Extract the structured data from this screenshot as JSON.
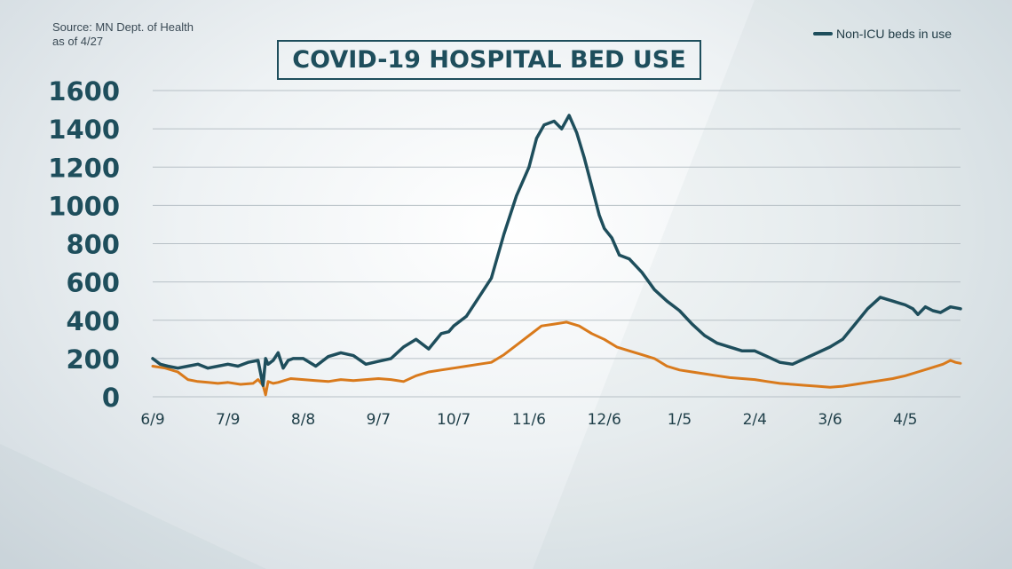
{
  "source_line1": "Source: MN Dept. of Health",
  "source_line2": "as of 4/27",
  "title": "COVID-19 HOSPITAL BED USE",
  "legend": {
    "label": "Non-ICU beds in use"
  },
  "colors": {
    "non_icu": "#1e4e5c",
    "icu": "#d97a1c",
    "grid": "#b7c0c6",
    "text": "#1e4e5c"
  },
  "chart_data": {
    "type": "line",
    "title": "COVID-19 HOSPITAL BED USE",
    "xlabel": "",
    "ylabel": "",
    "ylim": [
      0,
      1600
    ],
    "yticks": [
      0,
      200,
      400,
      600,
      800,
      1000,
      1200,
      1400,
      1600
    ],
    "xtick_labels": [
      "6/9",
      "7/9",
      "8/8",
      "9/7",
      "10/7",
      "11/6",
      "12/6",
      "1/5",
      "2/4",
      "3/6",
      "4/5"
    ],
    "xtick_positions": [
      0,
      30,
      60,
      90,
      120,
      150,
      180,
      210,
      240,
      270,
      300
    ],
    "xlim": [
      0,
      322
    ],
    "grid": true,
    "legend_position": "top-right",
    "series": [
      {
        "name": "Non-ICU beds in use",
        "x": [
          0,
          3,
          6,
          10,
          14,
          18,
          22,
          26,
          30,
          34,
          38,
          42,
          44,
          45,
          46,
          48,
          50,
          52,
          54,
          56,
          60,
          65,
          70,
          75,
          80,
          85,
          90,
          95,
          100,
          105,
          110,
          115,
          118,
          120,
          125,
          130,
          135,
          140,
          145,
          150,
          153,
          156,
          160,
          163,
          166,
          169,
          172,
          175,
          178,
          180,
          183,
          186,
          190,
          195,
          200,
          205,
          210,
          215,
          220,
          225,
          230,
          235,
          240,
          245,
          250,
          255,
          260,
          265,
          270,
          275,
          280,
          285,
          290,
          295,
          300,
          303,
          305,
          308,
          311,
          314,
          318,
          322
        ],
        "y": [
          200,
          170,
          160,
          150,
          160,
          170,
          150,
          160,
          170,
          160,
          180,
          190,
          60,
          200,
          170,
          190,
          230,
          150,
          190,
          200,
          200,
          160,
          210,
          230,
          215,
          170,
          185,
          200,
          260,
          300,
          250,
          330,
          340,
          370,
          420,
          520,
          620,
          850,
          1050,
          1200,
          1350,
          1420,
          1440,
          1400,
          1470,
          1380,
          1250,
          1100,
          950,
          880,
          830,
          740,
          720,
          650,
          560,
          500,
          450,
          380,
          320,
          280,
          260,
          240,
          240,
          210,
          180,
          170,
          200,
          230,
          260,
          300,
          380,
          460,
          520,
          500,
          480,
          460,
          430,
          470,
          450,
          440,
          470,
          460
        ]
      },
      {
        "x": [
          0,
          5,
          10,
          14,
          18,
          22,
          26,
          30,
          35,
          40,
          42,
          44,
          45,
          46,
          48,
          50,
          55,
          60,
          65,
          70,
          75,
          80,
          85,
          90,
          95,
          100,
          105,
          110,
          115,
          120,
          125,
          130,
          135,
          140,
          145,
          150,
          155,
          160,
          165,
          170,
          175,
          180,
          185,
          190,
          195,
          200,
          205,
          210,
          215,
          220,
          225,
          230,
          235,
          240,
          245,
          250,
          255,
          260,
          265,
          270,
          275,
          280,
          285,
          290,
          295,
          300,
          305,
          310,
          315,
          318,
          320,
          322
        ],
        "y": [
          160,
          150,
          130,
          90,
          80,
          75,
          70,
          75,
          65,
          70,
          90,
          60,
          10,
          80,
          70,
          75,
          95,
          90,
          85,
          80,
          90,
          85,
          90,
          95,
          90,
          80,
          110,
          130,
          140,
          150,
          160,
          170,
          180,
          220,
          270,
          320,
          370,
          380,
          390,
          370,
          330,
          300,
          260,
          240,
          220,
          200,
          160,
          140,
          130,
          120,
          110,
          100,
          95,
          90,
          80,
          70,
          65,
          60,
          55,
          50,
          55,
          65,
          75,
          85,
          95,
          110,
          130,
          150,
          170,
          190,
          180,
          175
        ]
      }
    ]
  }
}
